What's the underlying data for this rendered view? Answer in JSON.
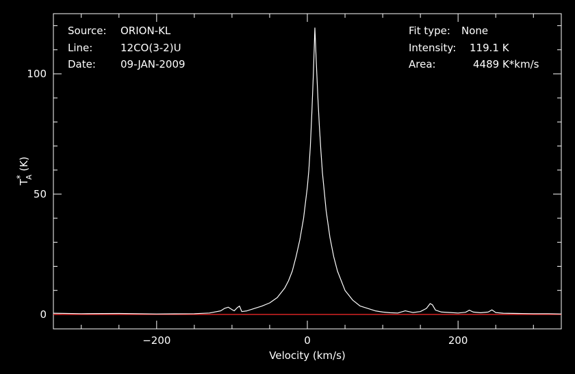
{
  "info_left": {
    "source_label": "Source:",
    "source_value": "ORION-KL",
    "line_label": "Line:",
    "line_value": "12CO(3-2)U",
    "date_label": "Date:",
    "date_value": "09-JAN-2009"
  },
  "info_right": {
    "fit_label": "Fit type:",
    "fit_value": "None",
    "intensity_label": "Intensity:",
    "intensity_value": "119.1 K",
    "area_label": "Area:",
    "area_value": "4489 K*km/s"
  },
  "chart_data": {
    "type": "line",
    "title": "",
    "xlabel": "Velocity (km/s)",
    "ylabel": "T*A (K)",
    "xlim": [
      -337,
      337
    ],
    "ylim": [
      -6,
      125
    ],
    "xticks": [
      -200,
      0,
      200
    ],
    "xtick_labels": [
      "−200",
      "0",
      "200"
    ],
    "yticks": [
      0,
      50,
      100
    ],
    "ytick_labels": [
      "0",
      "50",
      "100"
    ],
    "grid": false,
    "background": "#000000",
    "series": [
      {
        "color": "#ffffff",
        "x": [
          -337,
          -300,
          -250,
          -200,
          -150,
          -130,
          -115,
          -110,
          -105,
          -100,
          -97,
          -93,
          -90,
          -87,
          -80,
          -70,
          -60,
          -50,
          -40,
          -30,
          -25,
          -20,
          -15,
          -10,
          -5,
          0,
          2,
          4,
          6,
          8,
          10,
          12,
          14,
          16,
          18,
          20,
          25,
          30,
          35,
          40,
          50,
          60,
          70,
          80,
          90,
          100,
          110,
          120,
          130,
          140,
          150,
          158,
          163,
          166,
          170,
          178,
          190,
          200,
          210,
          215,
          220,
          230,
          240,
          245,
          250,
          260,
          280,
          300,
          320,
          337
        ],
        "y": [
          0.5,
          0.3,
          0.4,
          0.2,
          0.3,
          0.6,
          1.5,
          2.5,
          3.0,
          2.0,
          1.5,
          2.8,
          3.5,
          1.2,
          1.5,
          2.5,
          3.5,
          4.8,
          7.0,
          11.0,
          14.0,
          18.0,
          24.0,
          31.0,
          40.0,
          53.0,
          60.0,
          70.0,
          84.0,
          100.0,
          119.1,
          104.0,
          90.0,
          78.0,
          68.0,
          59.0,
          43.0,
          32.0,
          24.0,
          18.0,
          10.0,
          6.0,
          3.5,
          2.5,
          1.5,
          1.0,
          0.7,
          0.6,
          1.5,
          0.8,
          1.2,
          2.5,
          4.5,
          4.0,
          1.8,
          1.0,
          0.8,
          0.6,
          0.9,
          1.8,
          1.0,
          0.7,
          1.0,
          1.9,
          0.8,
          0.5,
          0.4,
          0.3,
          0.3,
          0.2
        ]
      },
      {
        "color": "#ff2a2a",
        "x": [
          -337,
          337
        ],
        "y": [
          0,
          0
        ]
      }
    ]
  }
}
